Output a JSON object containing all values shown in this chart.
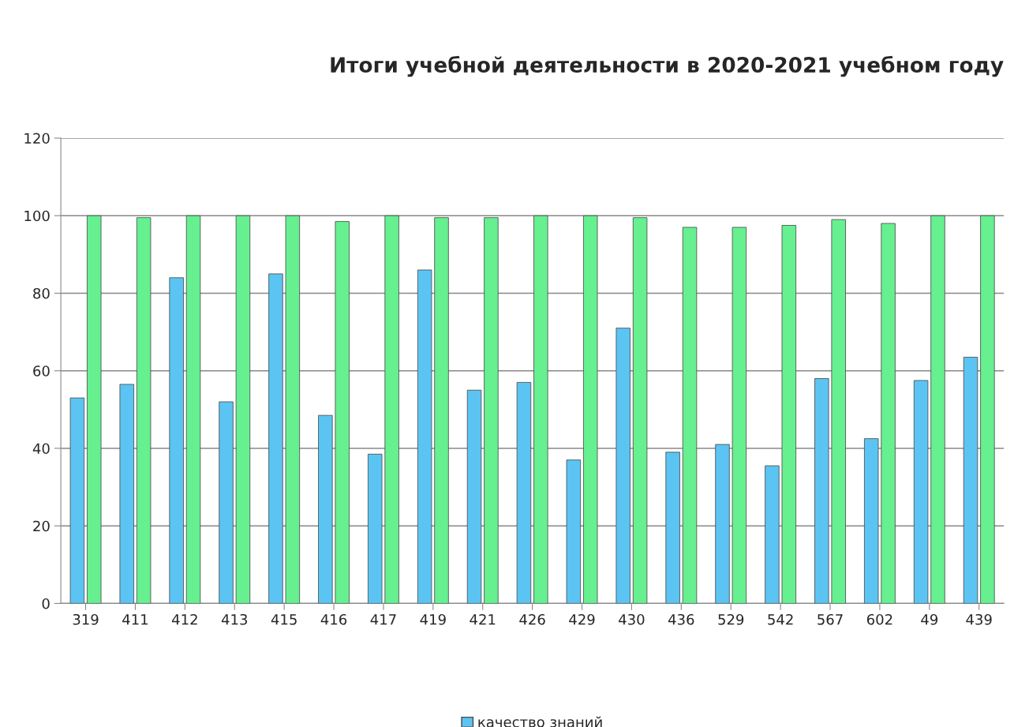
{
  "chart_data": {
    "type": "bar",
    "title": "Итоги учебной деятельности в 2020-2021 учебном году",
    "categories": [
      "319",
      "411",
      "412",
      "413",
      "415",
      "416",
      "417",
      "419",
      "421",
      "426",
      "429",
      "430",
      "436",
      "529",
      "542",
      "567",
      "602",
      "49",
      "439"
    ],
    "series": [
      {
        "name": "качество знаний",
        "color": "#5cc4f2",
        "values": [
          53,
          56.5,
          84,
          52,
          85,
          48.5,
          38.5,
          86,
          55,
          57,
          37,
          71,
          39,
          41,
          35.5,
          58,
          42.5,
          57.5,
          63.5
        ]
      },
      {
        "color": "#66f090",
        "values": [
          100,
          99.5,
          100,
          100,
          100,
          98.5,
          100,
          99.5,
          99.5,
          100,
          100,
          99.5,
          97,
          97,
          97.5,
          99,
          98,
          100,
          100
        ]
      }
    ],
    "ylim": [
      0,
      120
    ],
    "yticks": [
      0,
      20,
      40,
      60,
      80,
      100,
      120
    ],
    "grid": "y",
    "legend": "bottom"
  }
}
